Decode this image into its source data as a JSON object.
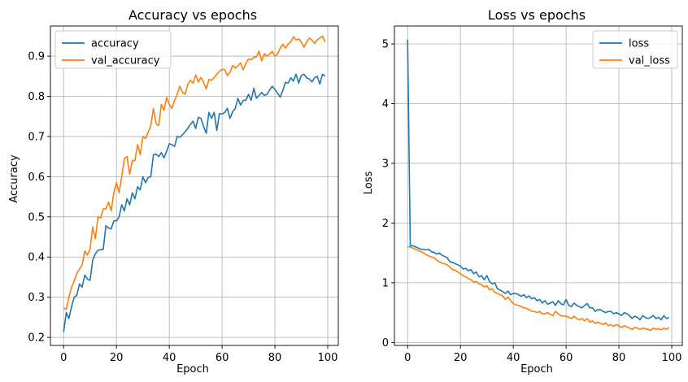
{
  "figure": {
    "background": "#ffffff"
  },
  "chart_data": [
    {
      "type": "line",
      "title": "Accuracy vs epochs",
      "xlabel": "Epoch",
      "ylabel": "Accuracy",
      "xlim": [
        -5,
        104
      ],
      "ylim": [
        0.18,
        0.975
      ],
      "xticks": [
        0,
        20,
        40,
        60,
        80,
        100
      ],
      "yticks": [
        0.2,
        0.3,
        0.4,
        0.5,
        0.6,
        0.7,
        0.8,
        0.9
      ],
      "ytick_labels": [
        "0.2",
        "0.3",
        "0.4",
        "0.5",
        "0.6",
        "0.7",
        "0.8",
        "0.9"
      ],
      "grid": true,
      "legend_position": "top-left",
      "series": [
        {
          "name": "accuracy",
          "color": "#1f77b4",
          "x_start": 0,
          "values": [
            0.213,
            0.262,
            0.247,
            0.277,
            0.3,
            0.305,
            0.333,
            0.325,
            0.355,
            0.345,
            0.342,
            0.392,
            0.408,
            0.417,
            0.418,
            0.419,
            0.478,
            0.472,
            0.47,
            0.49,
            0.49,
            0.5,
            0.53,
            0.515,
            0.545,
            0.53,
            0.56,
            0.545,
            0.575,
            0.567,
            0.6,
            0.585,
            0.598,
            0.6,
            0.655,
            0.656,
            0.65,
            0.66,
            0.647,
            0.663,
            0.682,
            0.68,
            0.675,
            0.7,
            0.698,
            0.704,
            0.712,
            0.72,
            0.73,
            0.738,
            0.72,
            0.748,
            0.745,
            0.725,
            0.708,
            0.76,
            0.745,
            0.76,
            0.715,
            0.757,
            0.756,
            0.76,
            0.77,
            0.745,
            0.762,
            0.77,
            0.795,
            0.778,
            0.79,
            0.79,
            0.805,
            0.79,
            0.82,
            0.795,
            0.802,
            0.81,
            0.802,
            0.805,
            0.816,
            0.825,
            0.817,
            0.808,
            0.798,
            0.815,
            0.835,
            0.833,
            0.846,
            0.838,
            0.855,
            0.833,
            0.852,
            0.855,
            0.846,
            0.843,
            0.836,
            0.846,
            0.85,
            0.83,
            0.855,
            0.85
          ]
        },
        {
          "name": "val_accuracy",
          "color": "#ff7f0e",
          "x_start": 0,
          "values": [
            0.273,
            0.27,
            0.3,
            0.325,
            0.34,
            0.36,
            0.37,
            0.38,
            0.415,
            0.405,
            0.42,
            0.475,
            0.445,
            0.5,
            0.497,
            0.52,
            0.52,
            0.537,
            0.515,
            0.56,
            0.585,
            0.56,
            0.6,
            0.645,
            0.65,
            0.606,
            0.64,
            0.64,
            0.68,
            0.655,
            0.7,
            0.695,
            0.71,
            0.727,
            0.77,
            0.732,
            0.727,
            0.78,
            0.765,
            0.797,
            0.78,
            0.77,
            0.79,
            0.805,
            0.825,
            0.81,
            0.805,
            0.83,
            0.84,
            0.833,
            0.853,
            0.836,
            0.847,
            0.835,
            0.818,
            0.842,
            0.84,
            0.847,
            0.855,
            0.862,
            0.867,
            0.866,
            0.852,
            0.86,
            0.877,
            0.87,
            0.876,
            0.883,
            0.866,
            0.882,
            0.893,
            0.891,
            0.897,
            0.898,
            0.912,
            0.888,
            0.906,
            0.9,
            0.905,
            0.912,
            0.9,
            0.905,
            0.92,
            0.93,
            0.92,
            0.93,
            0.935,
            0.948,
            0.94,
            0.943,
            0.935,
            0.922,
            0.935,
            0.945,
            0.94,
            0.932,
            0.94,
            0.945,
            0.95,
            0.935
          ]
        }
      ]
    },
    {
      "type": "line",
      "title": "Loss vs epochs",
      "xlabel": "Epoch",
      "ylabel": "Loss",
      "xlim": [
        -5,
        104
      ],
      "ylim": [
        -0.05,
        5.3
      ],
      "xticks": [
        0,
        20,
        40,
        60,
        80,
        100
      ],
      "yticks": [
        0,
        1,
        2,
        3,
        4,
        5
      ],
      "ytick_labels": [
        "0",
        "1",
        "2",
        "3",
        "4",
        "5"
      ],
      "grid": true,
      "legend_position": "top-right",
      "series": [
        {
          "name": "loss",
          "color": "#1f77b4",
          "x_start": 0,
          "values": [
            5.07,
            1.62,
            1.62,
            1.6,
            1.58,
            1.56,
            1.56,
            1.55,
            1.56,
            1.52,
            1.51,
            1.48,
            1.5,
            1.46,
            1.44,
            1.42,
            1.35,
            1.34,
            1.32,
            1.3,
            1.28,
            1.23,
            1.24,
            1.2,
            1.22,
            1.15,
            1.18,
            1.1,
            1.12,
            1.05,
            1.12,
            1.02,
            0.98,
            1.0,
            0.9,
            0.88,
            0.85,
            0.82,
            0.86,
            0.8,
            0.82,
            0.82,
            0.8,
            0.77,
            0.8,
            0.75,
            0.78,
            0.73,
            0.75,
            0.7,
            0.72,
            0.66,
            0.7,
            0.64,
            0.66,
            0.68,
            0.62,
            0.7,
            0.65,
            0.63,
            0.72,
            0.62,
            0.6,
            0.66,
            0.62,
            0.6,
            0.58,
            0.62,
            0.65,
            0.58,
            0.58,
            0.52,
            0.55,
            0.55,
            0.52,
            0.5,
            0.52,
            0.52,
            0.48,
            0.5,
            0.48,
            0.45,
            0.5,
            0.48,
            0.45,
            0.4,
            0.44,
            0.42,
            0.38,
            0.45,
            0.42,
            0.4,
            0.42,
            0.45,
            0.4,
            0.42,
            0.38,
            0.45,
            0.4,
            0.42
          ]
        },
        {
          "name": "val_loss",
          "color": "#ff7f0e",
          "x_start": 0,
          "values": [
            1.6,
            1.6,
            1.58,
            1.56,
            1.54,
            1.52,
            1.5,
            1.47,
            1.45,
            1.43,
            1.42,
            1.38,
            1.35,
            1.33,
            1.32,
            1.3,
            1.26,
            1.22,
            1.21,
            1.18,
            1.15,
            1.12,
            1.1,
            1.07,
            1.05,
            1.01,
            1.02,
            0.98,
            0.97,
            0.93,
            0.95,
            0.88,
            0.9,
            0.84,
            0.82,
            0.8,
            0.78,
            0.72,
            0.76,
            0.7,
            0.65,
            0.63,
            0.62,
            0.6,
            0.58,
            0.57,
            0.55,
            0.52,
            0.52,
            0.5,
            0.52,
            0.48,
            0.48,
            0.5,
            0.47,
            0.45,
            0.52,
            0.48,
            0.45,
            0.44,
            0.44,
            0.42,
            0.4,
            0.44,
            0.4,
            0.38,
            0.4,
            0.36,
            0.4,
            0.34,
            0.36,
            0.32,
            0.34,
            0.32,
            0.3,
            0.33,
            0.28,
            0.3,
            0.27,
            0.3,
            0.28,
            0.25,
            0.28,
            0.26,
            0.24,
            0.22,
            0.25,
            0.24,
            0.22,
            0.24,
            0.23,
            0.22,
            0.2,
            0.24,
            0.22,
            0.23,
            0.21,
            0.24,
            0.22,
            0.25
          ]
        }
      ]
    }
  ]
}
